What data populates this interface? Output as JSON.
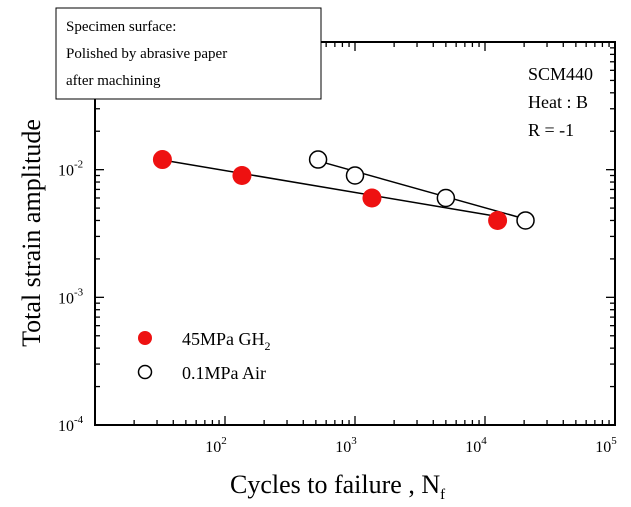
{
  "chart_data": {
    "type": "scatter",
    "xlabel": "Cycles to failure , N",
    "xlabel_sub": "f",
    "ylabel": "Total strain amplitude",
    "xscale": "log",
    "yscale": "log",
    "xlim": [
      10,
      100000
    ],
    "ylim": [
      0.0001,
      0.1
    ],
    "x_tick_labels": [
      {
        "base": "10",
        "exp": "2"
      },
      {
        "base": "10",
        "exp": "3"
      },
      {
        "base": "10",
        "exp": "4"
      },
      {
        "base": "10",
        "exp": "5"
      }
    ],
    "y_tick_labels": [
      {
        "base": "10",
        "exp": "-2"
      },
      {
        "base": "10",
        "exp": "-3"
      },
      {
        "base": "10",
        "exp": "-4"
      }
    ],
    "series": [
      {
        "name": "45MPa GH",
        "name_sub": "2",
        "marker": "filled-circle",
        "color": "#ee1111",
        "points": [
          [
            33,
            0.012
          ],
          [
            135,
            0.009
          ],
          [
            1350,
            0.006
          ],
          [
            12500,
            0.004
          ]
        ],
        "fit": [
          [
            33,
            0.0119
          ],
          [
            12500,
            0.0043
          ]
        ]
      },
      {
        "name": "0.1MPa Air",
        "marker": "open-circle",
        "color": "#000000",
        "points": [
          [
            520,
            0.012
          ],
          [
            1000,
            0.009
          ],
          [
            5000,
            0.006
          ],
          [
            20500,
            0.004
          ]
        ],
        "fit": [
          [
            520,
            0.0117
          ],
          [
            20500,
            0.0041
          ]
        ]
      }
    ],
    "annotation_box": [
      "Specimen surface:",
      "Polished by abrasive paper",
      "after machining"
    ],
    "info_text": [
      "SCM440",
      "Heat : B",
      "R = -1"
    ],
    "legend_position": "bottom-left",
    "grid": false
  }
}
